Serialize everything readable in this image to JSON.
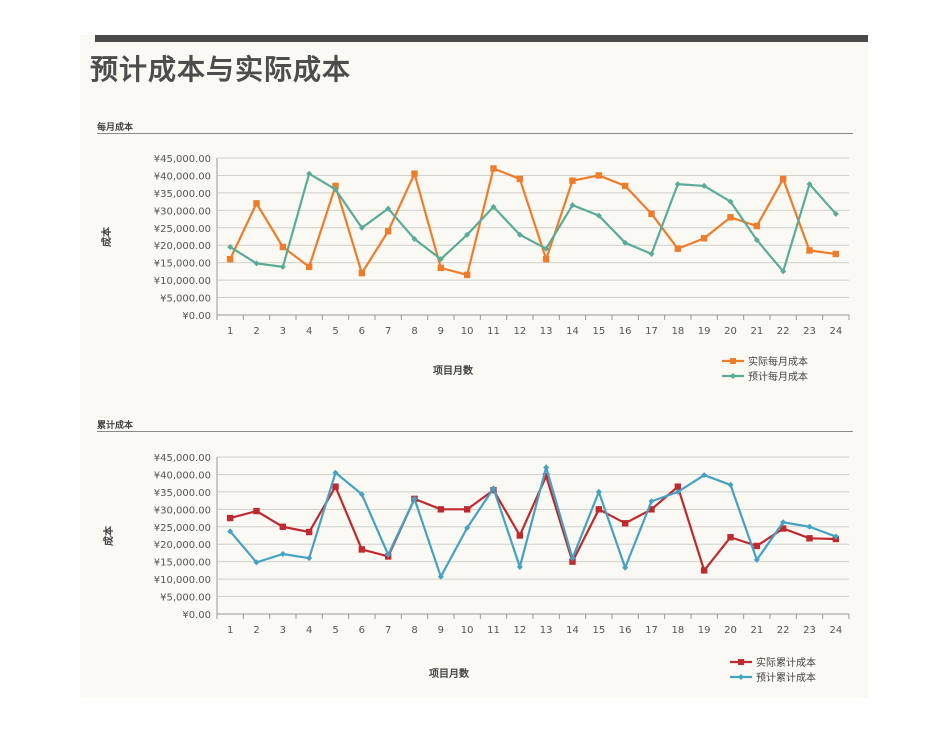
{
  "title": "预计成本与实际成本",
  "sections": [
    "每月成本",
    "累计成本"
  ],
  "chart_data": [
    {
      "type": "line",
      "ylabel": "成本",
      "xlabel": "项目月数",
      "ylim": [
        0,
        45000
      ],
      "yticks": [
        "¥0.00",
        "¥5,000.00",
        "¥10,000.00",
        "¥15,000.00",
        "¥20,000.00",
        "¥25,000.00",
        "¥30,000.00",
        "¥35,000.00",
        "¥40,000.00",
        "¥45,000.00"
      ],
      "grid": true,
      "legend": "bottom-right",
      "categories": [
        "1",
        "2",
        "3",
        "4",
        "5",
        "6",
        "7",
        "8",
        "9",
        "10",
        "11",
        "12",
        "13",
        "14",
        "15",
        "16",
        "17",
        "18",
        "19",
        "20",
        "21",
        "22",
        "23",
        "24"
      ],
      "series": [
        {
          "name": "实际每月成本",
          "color": "#ee7d2b",
          "marker": "square",
          "values": [
            16000,
            32000,
            19500,
            13800,
            37000,
            12000,
            24000,
            40500,
            13500,
            11500,
            42000,
            39000,
            16000,
            38500,
            40000,
            37000,
            29000,
            19000,
            22000,
            28000,
            25500,
            39000,
            18500,
            17500
          ]
        },
        {
          "name": "预计每月成本",
          "color": "#5aac98",
          "marker": "diamond",
          "values": [
            19500,
            14800,
            13800,
            40500,
            36000,
            25000,
            30500,
            21800,
            16000,
            23000,
            31000,
            23000,
            19000,
            31500,
            28500,
            20700,
            17500,
            37500,
            37000,
            32500,
            21500,
            12500,
            37500,
            29000
          ]
        }
      ]
    },
    {
      "type": "line",
      "ylabel": "成本",
      "xlabel": "项目月数",
      "ylim": [
        0,
        45000
      ],
      "yticks": [
        "¥0.00",
        "¥5,000.00",
        "¥10,000.00",
        "¥15,000.00",
        "¥20,000.00",
        "¥25,000.00",
        "¥30,000.00",
        "¥35,000.00",
        "¥40,000.00",
        "¥45,000.00"
      ],
      "grid": true,
      "legend": "bottom-right",
      "categories": [
        "1",
        "2",
        "3",
        "4",
        "5",
        "6",
        "7",
        "8",
        "9",
        "10",
        "11",
        "12",
        "13",
        "14",
        "15",
        "16",
        "17",
        "18",
        "19",
        "20",
        "21",
        "22",
        "23",
        "24"
      ],
      "series": [
        {
          "name": "实际累计成本",
          "color": "#bf2a30",
          "marker": "square",
          "values": [
            27500,
            29500,
            25000,
            23500,
            36500,
            18500,
            16500,
            33000,
            30000,
            30000,
            35500,
            22500,
            39500,
            15000,
            30000,
            26000,
            30000,
            36500,
            12500,
            22000,
            19500,
            24500,
            21700,
            21500
          ]
        },
        {
          "name": "预计累计成本",
          "color": "#45a2c3",
          "marker": "diamond",
          "values": [
            23700,
            14800,
            17200,
            16000,
            40500,
            34300,
            17000,
            33000,
            10700,
            24700,
            36000,
            13500,
            42000,
            16000,
            35000,
            13300,
            32300,
            35000,
            39800,
            37000,
            15500,
            26300,
            25000,
            22200
          ]
        }
      ]
    }
  ]
}
